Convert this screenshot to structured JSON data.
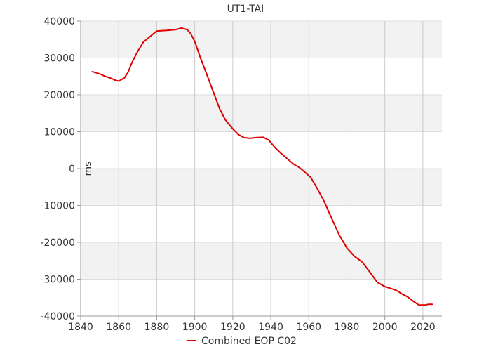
{
  "chart_data": {
    "type": "line",
    "title": "UT1-TAI",
    "xlabel": "",
    "ylabel": "ms",
    "xlim": [
      1840,
      2030
    ],
    "ylim": [
      -40000,
      40000
    ],
    "x_ticks": [
      "1840",
      "1860",
      "1880",
      "1900",
      "1920",
      "1940",
      "1960",
      "1980",
      "2000",
      "2020"
    ],
    "y_ticks": [
      "40000",
      "30000",
      "20000",
      "10000",
      "0",
      "-10000",
      "-20000",
      "-30000",
      "-40000"
    ],
    "grid": true,
    "legend": "bottom-center",
    "series": [
      {
        "name": "Combined EOP C02",
        "color": "#e00000",
        "points": [
          [
            1846,
            26300
          ],
          [
            1850,
            25700
          ],
          [
            1853,
            25000
          ],
          [
            1856,
            24500
          ],
          [
            1858,
            24000
          ],
          [
            1860,
            23700
          ],
          [
            1863,
            24600
          ],
          [
            1865,
            26200
          ],
          [
            1867,
            28800
          ],
          [
            1870,
            31800
          ],
          [
            1873,
            34300
          ],
          [
            1876,
            35600
          ],
          [
            1880,
            37300
          ],
          [
            1883,
            37400
          ],
          [
            1886,
            37500
          ],
          [
            1890,
            37700
          ],
          [
            1893,
            38100
          ],
          [
            1896,
            37700
          ],
          [
            1898,
            36500
          ],
          [
            1900,
            34500
          ],
          [
            1903,
            30000
          ],
          [
            1906,
            26000
          ],
          [
            1910,
            20500
          ],
          [
            1913,
            16300
          ],
          [
            1916,
            13300
          ],
          [
            1920,
            10800
          ],
          [
            1923,
            9200
          ],
          [
            1926,
            8400
          ],
          [
            1929,
            8200
          ],
          [
            1932,
            8400
          ],
          [
            1936,
            8500
          ],
          [
            1939,
            7700
          ],
          [
            1942,
            5800
          ],
          [
            1945,
            4300
          ],
          [
            1948,
            3000
          ],
          [
            1952,
            1200
          ],
          [
            1955,
            300
          ],
          [
            1958,
            -1000
          ],
          [
            1961,
            -2400
          ],
          [
            1964,
            -5000
          ],
          [
            1968,
            -8800
          ],
          [
            1972,
            -13500
          ],
          [
            1976,
            -18000
          ],
          [
            1980,
            -21500
          ],
          [
            1984,
            -23800
          ],
          [
            1988,
            -25300
          ],
          [
            1992,
            -28000
          ],
          [
            1996,
            -30800
          ],
          [
            2000,
            -32000
          ],
          [
            2003,
            -32500
          ],
          [
            2006,
            -33000
          ],
          [
            2009,
            -34000
          ],
          [
            2012,
            -34800
          ],
          [
            2015,
            -36000
          ],
          [
            2018,
            -37000
          ],
          [
            2021,
            -37000
          ],
          [
            2023,
            -36800
          ],
          [
            2025,
            -36800
          ]
        ]
      }
    ]
  }
}
